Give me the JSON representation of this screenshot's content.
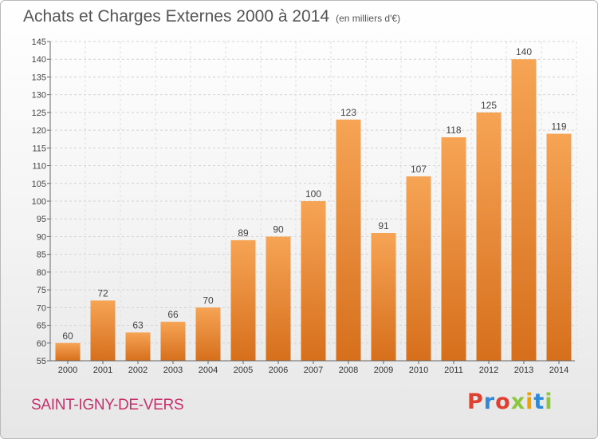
{
  "header": {
    "title": "Achats et Charges Externes 2000 à 2014",
    "subtitle": "(en milliers d'€)"
  },
  "footer": {
    "commune": "SAINT-IGNY-DE-VERS",
    "logo": "Proxiti"
  },
  "colors": {
    "bar_light": "#f6a455",
    "bar_dark": "#d66f1c",
    "commune_text": "#c8306a",
    "logo_letters": [
      "#e0402f",
      "#2e8ad6",
      "#e0402f",
      "#8cc63f",
      "#f0a000",
      "#2e8ad6",
      "#8cc63f"
    ]
  },
  "chart_data": {
    "type": "bar",
    "title": "Achats et Charges Externes 2000 à 2014",
    "subtitle": "(en milliers d'€)",
    "xlabel": "",
    "ylabel": "",
    "categories": [
      "2000",
      "2001",
      "2002",
      "2003",
      "2004",
      "2005",
      "2006",
      "2007",
      "2008",
      "2009",
      "2010",
      "2011",
      "2012",
      "2013",
      "2014"
    ],
    "values": [
      60,
      72,
      63,
      66,
      70,
      89,
      90,
      100,
      123,
      91,
      107,
      118,
      125,
      140,
      119
    ],
    "ylim": [
      55,
      145
    ],
    "yticks": [
      55,
      60,
      65,
      70,
      75,
      80,
      85,
      90,
      95,
      100,
      105,
      110,
      115,
      120,
      125,
      130,
      135,
      140,
      145
    ],
    "grid": true
  }
}
